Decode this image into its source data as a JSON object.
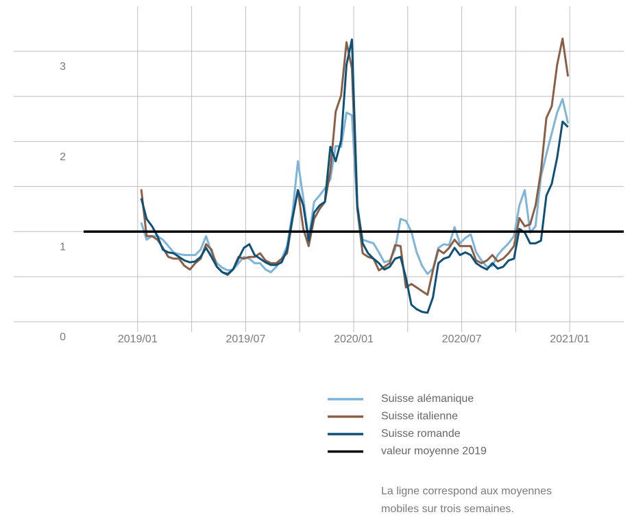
{
  "chart_data": {
    "type": "line",
    "x": [
      0.2,
      0.5,
      0.8,
      1.1,
      1.4,
      1.7,
      2.0,
      2.3,
      2.6,
      2.9,
      3.2,
      3.5,
      3.8,
      4.1,
      4.4,
      4.7,
      5.0,
      5.3,
      5.6,
      5.9,
      6.2,
      6.5,
      6.8,
      7.1,
      7.4,
      7.7,
      8.0,
      8.3,
      8.6,
      8.9,
      9.2,
      9.5,
      9.8,
      10.1,
      10.4,
      10.7,
      11.0,
      11.3,
      11.6,
      11.9,
      12.2,
      12.5,
      12.8,
      13.1,
      13.4,
      13.7,
      14.0,
      14.3,
      14.6,
      14.9,
      15.2,
      15.5,
      15.8,
      16.1,
      16.4,
      16.7,
      17.0,
      17.3,
      17.6,
      17.9,
      18.2,
      18.5,
      18.8,
      19.1,
      19.4,
      19.7,
      20.0,
      20.3,
      20.6,
      20.9,
      21.2,
      21.5,
      21.8,
      22.1,
      22.4,
      22.7,
      23.0,
      23.3,
      23.6,
      23.9
    ],
    "series": [
      {
        "name": "Suisse alémanique",
        "color": "#7db4da",
        "values": [
          1.1,
          0.91,
          0.95,
          0.95,
          0.91,
          0.84,
          0.77,
          0.75,
          0.74,
          0.74,
          0.74,
          0.8,
          0.95,
          0.77,
          0.65,
          0.6,
          0.57,
          0.58,
          0.65,
          0.72,
          0.7,
          0.65,
          0.65,
          0.58,
          0.55,
          0.61,
          0.7,
          0.84,
          1.21,
          1.78,
          1.37,
          0.91,
          1.33,
          1.4,
          1.48,
          1.58,
          1.95,
          1.94,
          2.32,
          2.29,
          1.25,
          0.91,
          0.89,
          0.87,
          0.77,
          0.66,
          0.68,
          0.8,
          1.14,
          1.12,
          1.0,
          0.77,
          0.62,
          0.53,
          0.59,
          0.82,
          0.86,
          0.85,
          1.05,
          0.87,
          0.93,
          0.97,
          0.77,
          0.68,
          0.61,
          0.62,
          0.74,
          0.81,
          0.87,
          0.95,
          1.29,
          1.46,
          0.99,
          1.06,
          1.61,
          1.86,
          2.09,
          2.32,
          2.47,
          2.2
        ]
      },
      {
        "name": "Suisse italienne",
        "color": "#8b5e46",
        "values": [
          1.47,
          0.95,
          0.95,
          0.91,
          0.82,
          0.72,
          0.7,
          0.7,
          0.62,
          0.58,
          0.65,
          0.7,
          0.86,
          0.8,
          0.61,
          0.55,
          0.52,
          0.58,
          0.72,
          0.7,
          0.72,
          0.72,
          0.76,
          0.68,
          0.65,
          0.65,
          0.7,
          0.76,
          1.14,
          1.46,
          1.03,
          0.84,
          1.14,
          1.25,
          1.33,
          1.67,
          2.33,
          2.51,
          3.1,
          2.81,
          1.25,
          0.76,
          0.72,
          0.7,
          0.57,
          0.61,
          0.65,
          0.85,
          0.84,
          0.38,
          0.42,
          0.38,
          0.34,
          0.3,
          0.57,
          0.8,
          0.76,
          0.82,
          0.91,
          0.84,
          0.84,
          0.84,
          0.68,
          0.65,
          0.68,
          0.74,
          0.67,
          0.7,
          0.76,
          0.84,
          1.15,
          1.06,
          1.08,
          1.29,
          1.67,
          2.26,
          2.39,
          2.85,
          3.14,
          2.72
        ]
      },
      {
        "name": "Suisse romande",
        "color": "#0d5179",
        "values": [
          1.37,
          1.14,
          1.06,
          0.95,
          0.8,
          0.77,
          0.76,
          0.72,
          0.68,
          0.66,
          0.67,
          0.72,
          0.82,
          0.72,
          0.61,
          0.55,
          0.53,
          0.58,
          0.7,
          0.82,
          0.86,
          0.74,
          0.7,
          0.66,
          0.63,
          0.63,
          0.66,
          0.8,
          1.15,
          1.46,
          1.29,
          0.9,
          1.21,
          1.29,
          1.33,
          1.94,
          1.78,
          2.01,
          2.85,
          3.13,
          1.29,
          0.87,
          0.76,
          0.7,
          0.65,
          0.58,
          0.61,
          0.7,
          0.72,
          0.49,
          0.19,
          0.14,
          0.11,
          0.1,
          0.27,
          0.65,
          0.7,
          0.72,
          0.82,
          0.74,
          0.77,
          0.74,
          0.65,
          0.61,
          0.58,
          0.65,
          0.59,
          0.61,
          0.68,
          0.7,
          1.03,
          0.99,
          0.87,
          0.87,
          0.9,
          1.4,
          1.53,
          1.82,
          2.22,
          2.16
        ]
      }
    ],
    "reference": {
      "name": "valeur moyenne 2019",
      "value": 1,
      "color": "#000000"
    },
    "xlim": [
      -3,
      27
    ],
    "xticks": [
      {
        "value": 0,
        "label": "2019/01"
      },
      {
        "value": 6,
        "label": "2019/07"
      },
      {
        "value": 12,
        "label": "2020/01"
      },
      {
        "value": 18,
        "label": "2020/07"
      },
      {
        "value": 24,
        "label": "2021/01"
      }
    ],
    "minor_xticks": [
      3,
      9,
      15,
      21
    ],
    "ylim": [
      0,
      3.5
    ],
    "yticks": [
      0,
      1,
      2,
      3
    ],
    "minor_yticks": [
      0.5,
      1.5,
      2.5
    ],
    "grid": true,
    "note": "La ligne correspond aux moyennes mobiles sur trois semaines."
  }
}
